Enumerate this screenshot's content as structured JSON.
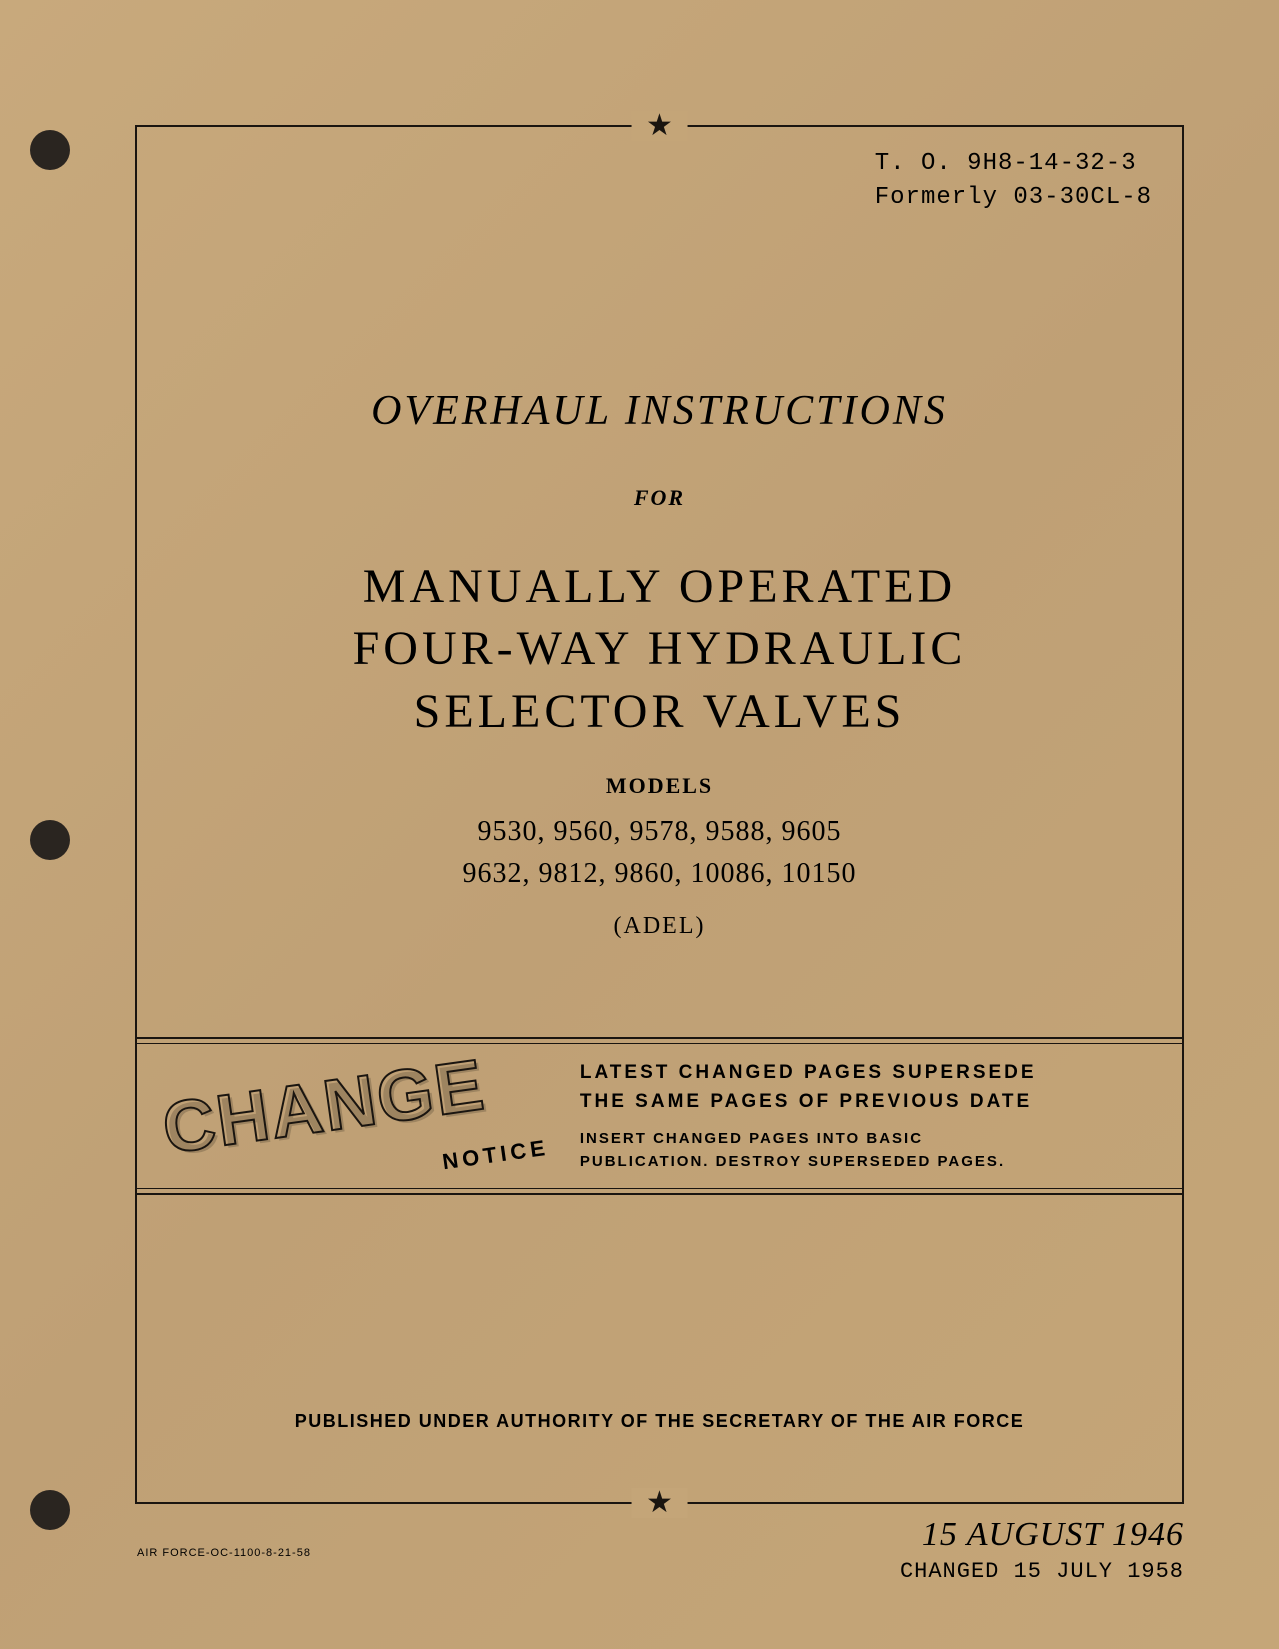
{
  "document": {
    "number": "T. O. 9H8-14-32-3",
    "formerly": "Formerly 03-30CL-8",
    "title_prefix": "OVERHAUL INSTRUCTIONS",
    "for_label": "FOR",
    "main_title_line1": "MANUALLY OPERATED",
    "main_title_line2": "FOUR-WAY HYDRAULIC",
    "main_title_line3": "SELECTOR VALVES",
    "models_label": "MODELS",
    "models_line1": "9530, 9560, 9578, 9588, 9605",
    "models_line2": "9632, 9812, 9860, 10086, 10150",
    "manufacturer": "(ADEL)",
    "change_word": "CHANGE",
    "notice_word": "NOTICE",
    "change_text_line1": "LATEST CHANGED PAGES SUPERSEDE",
    "change_text_line2": "THE SAME PAGES OF PREVIOUS DATE",
    "change_sub_line1": "INSERT CHANGED PAGES INTO BASIC",
    "change_sub_line2": "PUBLICATION. DESTROY SUPERSEDED PAGES.",
    "authority": "PUBLISHED UNDER AUTHORITY OF THE SECRETARY OF THE AIR FORCE",
    "main_date": "15 AUGUST 1946",
    "changed_date": "CHANGED 15 JULY 1958",
    "footer_code": "AIR FORCE-OC-1100-8-21-58"
  },
  "colors": {
    "paper_bg": "#c4a578",
    "ink": "#1a1510"
  }
}
